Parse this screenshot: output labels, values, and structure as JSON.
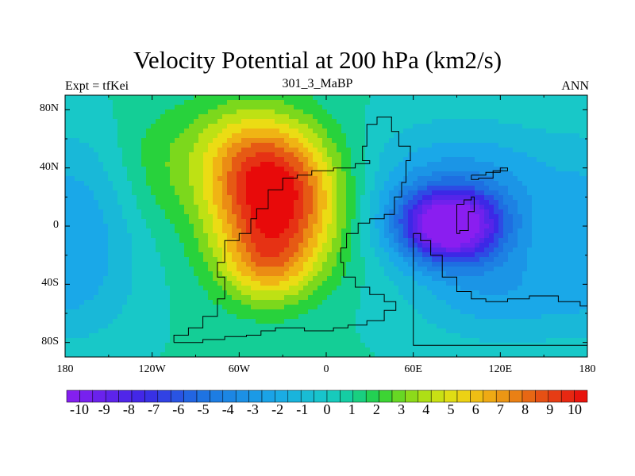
{
  "chart_data": {
    "type": "heatmap",
    "title": "Velocity Potential at 200 hPa (km2/s)",
    "left_label": "Expt = tfKei",
    "center_label": "301_3_MaBP",
    "right_label": "ANN",
    "x_ticks": [
      "180",
      "120W",
      "60W",
      "0",
      "60E",
      "120E",
      "180"
    ],
    "x_values": [
      -180,
      -120,
      -60,
      0,
      60,
      120,
      180
    ],
    "y_ticks": [
      "80N",
      "40N",
      "0",
      "40S",
      "80S"
    ],
    "y_values": [
      80,
      40,
      0,
      -40,
      -80
    ],
    "xlim": [
      -180,
      180
    ],
    "ylim": [
      -90,
      90
    ],
    "colorbar_labels": [
      "-10",
      "-9",
      "-8",
      "-7",
      "-6",
      "-5",
      "-4",
      "-3",
      "-2",
      "-1",
      "0",
      "1",
      "2",
      "3",
      "4",
      "5",
      "6",
      "7",
      "8",
      "9",
      "10"
    ],
    "colorbar_range": [
      -10,
      10
    ],
    "features": [
      {
        "kind": "maximum",
        "lon": -35,
        "lat": 22,
        "value": 10
      },
      {
        "kind": "maximum",
        "lon": -40,
        "lat": -25,
        "value": 6
      },
      {
        "kind": "minimum",
        "lon": 85,
        "lat": 0,
        "value": -10
      }
    ],
    "colors": {
      "min": "#8a1ef0",
      "mid_low": "#1aa8e8",
      "mid_high": "#7cd81c",
      "max": "#e80a0a"
    }
  }
}
